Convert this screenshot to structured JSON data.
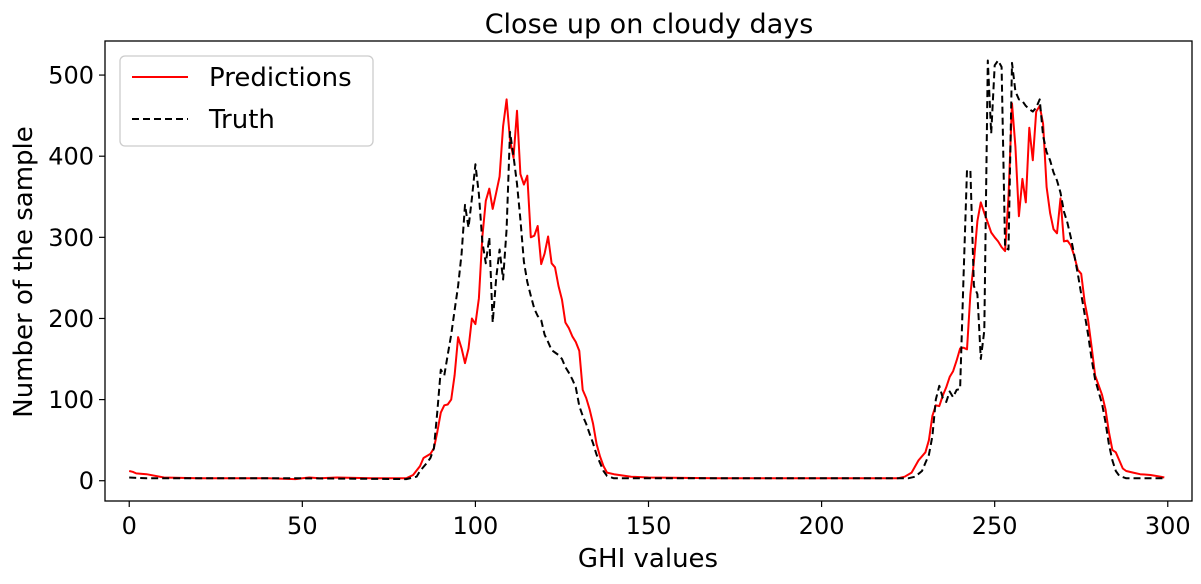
{
  "chart_data": {
    "type": "line",
    "title": "Close up on cloudy days",
    "xlabel": "GHI values",
    "ylabel": "Number of the sample",
    "xlim": [
      -7,
      307
    ],
    "ylim": [
      -25,
      542
    ],
    "xticks": [
      0,
      50,
      100,
      150,
      200,
      250,
      300
    ],
    "yticks": [
      0,
      100,
      200,
      300,
      400,
      500
    ],
    "grid": false,
    "legend_position": "top-left",
    "series": [
      {
        "name": "Predictions",
        "color": "#ff0000",
        "style": "solid",
        "points": [
          [
            0,
            12
          ],
          [
            1,
            11
          ],
          [
            2,
            9
          ],
          [
            5,
            8
          ],
          [
            10,
            4
          ],
          [
            20,
            3
          ],
          [
            40,
            3
          ],
          [
            48,
            2
          ],
          [
            50,
            3
          ],
          [
            52,
            4
          ],
          [
            55,
            3
          ],
          [
            60,
            4
          ],
          [
            70,
            3
          ],
          [
            80,
            3
          ],
          [
            82,
            7
          ],
          [
            84,
            18
          ],
          [
            85,
            28
          ],
          [
            87,
            33
          ],
          [
            88,
            40
          ],
          [
            89,
            60
          ],
          [
            90,
            84
          ],
          [
            91,
            93
          ],
          [
            92,
            94
          ],
          [
            93,
            100
          ],
          [
            94,
            130
          ],
          [
            95,
            177
          ],
          [
            96,
            163
          ],
          [
            97,
            145
          ],
          [
            98,
            163
          ],
          [
            99,
            200
          ],
          [
            100,
            193
          ],
          [
            101,
            225
          ],
          [
            102,
            300
          ],
          [
            103,
            345
          ],
          [
            104,
            360
          ],
          [
            105,
            335
          ],
          [
            106,
            355
          ],
          [
            107,
            375
          ],
          [
            108,
            437
          ],
          [
            109,
            470
          ],
          [
            110,
            420
          ],
          [
            111,
            398
          ],
          [
            112,
            456
          ],
          [
            113,
            378
          ],
          [
            114,
            365
          ],
          [
            115,
            376
          ],
          [
            116,
            300
          ],
          [
            117,
            302
          ],
          [
            118,
            314
          ],
          [
            119,
            267
          ],
          [
            120,
            280
          ],
          [
            121,
            301
          ],
          [
            122,
            268
          ],
          [
            123,
            263
          ],
          [
            124,
            240
          ],
          [
            125,
            223
          ],
          [
            126,
            195
          ],
          [
            127,
            188
          ],
          [
            128,
            178
          ],
          [
            129,
            171
          ],
          [
            130,
            160
          ],
          [
            131,
            112
          ],
          [
            132,
            102
          ],
          [
            133,
            88
          ],
          [
            134,
            70
          ],
          [
            135,
            45
          ],
          [
            136,
            30
          ],
          [
            137,
            18
          ],
          [
            138,
            10
          ],
          [
            140,
            8
          ],
          [
            145,
            5
          ],
          [
            150,
            4
          ],
          [
            170,
            3
          ],
          [
            200,
            3
          ],
          [
            222,
            3
          ],
          [
            224,
            5
          ],
          [
            226,
            10
          ],
          [
            228,
            25
          ],
          [
            230,
            35
          ],
          [
            231,
            50
          ],
          [
            232,
            80
          ],
          [
            233,
            93
          ],
          [
            234,
            92
          ],
          [
            235,
            105
          ],
          [
            236,
            115
          ],
          [
            237,
            128
          ],
          [
            238,
            135
          ],
          [
            239,
            148
          ],
          [
            240,
            163
          ],
          [
            241,
            164
          ],
          [
            242,
            162
          ],
          [
            243,
            230
          ],
          [
            244,
            270
          ],
          [
            245,
            320
          ],
          [
            246,
            343
          ],
          [
            247,
            330
          ],
          [
            248,
            318
          ],
          [
            249,
            306
          ],
          [
            250,
            300
          ],
          [
            251,
            295
          ],
          [
            252,
            288
          ],
          [
            253,
            283
          ],
          [
            254,
            350
          ],
          [
            255,
            465
          ],
          [
            256,
            412
          ],
          [
            257,
            326
          ],
          [
            258,
            372
          ],
          [
            259,
            343
          ],
          [
            260,
            435
          ],
          [
            261,
            395
          ],
          [
            262,
            455
          ],
          [
            263,
            462
          ],
          [
            264,
            440
          ],
          [
            265,
            362
          ],
          [
            266,
            330
          ],
          [
            267,
            310
          ],
          [
            268,
            305
          ],
          [
            269,
            348
          ],
          [
            270,
            295
          ],
          [
            271,
            296
          ],
          [
            272,
            290
          ],
          [
            273,
            277
          ],
          [
            274,
            260
          ],
          [
            275,
            255
          ],
          [
            276,
            220
          ],
          [
            277,
            198
          ],
          [
            278,
            165
          ],
          [
            279,
            130
          ],
          [
            280,
            118
          ],
          [
            281,
            106
          ],
          [
            282,
            88
          ],
          [
            283,
            60
          ],
          [
            284,
            38
          ],
          [
            285,
            35
          ],
          [
            286,
            25
          ],
          [
            287,
            15
          ],
          [
            288,
            12
          ],
          [
            290,
            10
          ],
          [
            292,
            8
          ],
          [
            295,
            7
          ],
          [
            298,
            5
          ],
          [
            299,
            4
          ]
        ]
      },
      {
        "name": "Truth",
        "color": "#000000",
        "style": "dashed",
        "points": [
          [
            0,
            4
          ],
          [
            5,
            3
          ],
          [
            20,
            3
          ],
          [
            50,
            3
          ],
          [
            80,
            2
          ],
          [
            83,
            5
          ],
          [
            84,
            12
          ],
          [
            86,
            22
          ],
          [
            87,
            28
          ],
          [
            88,
            40
          ],
          [
            89,
            85
          ],
          [
            90,
            137
          ],
          [
            91,
            130
          ],
          [
            92,
            155
          ],
          [
            93,
            180
          ],
          [
            94,
            210
          ],
          [
            95,
            240
          ],
          [
            96,
            280
          ],
          [
            97,
            340
          ],
          [
            98,
            312
          ],
          [
            99,
            348
          ],
          [
            100,
            390
          ],
          [
            101,
            353
          ],
          [
            102,
            295
          ],
          [
            103,
            268
          ],
          [
            104,
            300
          ],
          [
            105,
            195
          ],
          [
            106,
            250
          ],
          [
            107,
            285
          ],
          [
            108,
            248
          ],
          [
            109,
            310
          ],
          [
            110,
            430
          ],
          [
            111,
            400
          ],
          [
            112,
            366
          ],
          [
            113,
            322
          ],
          [
            114,
            270
          ],
          [
            115,
            245
          ],
          [
            116,
            228
          ],
          [
            117,
            212
          ],
          [
            118,
            203
          ],
          [
            119,
            198
          ],
          [
            120,
            180
          ],
          [
            121,
            171
          ],
          [
            122,
            161
          ],
          [
            123,
            158
          ],
          [
            124,
            155
          ],
          [
            125,
            150
          ],
          [
            126,
            140
          ],
          [
            127,
            133
          ],
          [
            128,
            125
          ],
          [
            129,
            115
          ],
          [
            130,
            92
          ],
          [
            131,
            80
          ],
          [
            132,
            70
          ],
          [
            133,
            58
          ],
          [
            134,
            46
          ],
          [
            135,
            32
          ],
          [
            136,
            22
          ],
          [
            137,
            12
          ],
          [
            138,
            6
          ],
          [
            140,
            3
          ],
          [
            150,
            3
          ],
          [
            200,
            3
          ],
          [
            225,
            3
          ],
          [
            227,
            5
          ],
          [
            229,
            12
          ],
          [
            230,
            22
          ],
          [
            231,
            32
          ],
          [
            232,
            55
          ],
          [
            233,
            100
          ],
          [
            234,
            117
          ],
          [
            235,
            102
          ],
          [
            236,
            97
          ],
          [
            237,
            110
          ],
          [
            238,
            103
          ],
          [
            239,
            112
          ],
          [
            240,
            113
          ],
          [
            241,
            250
          ],
          [
            242,
            383
          ],
          [
            243,
            382
          ],
          [
            244,
            240
          ],
          [
            245,
            230
          ],
          [
            246,
            150
          ],
          [
            247,
            185
          ],
          [
            248,
            518
          ],
          [
            249,
            428
          ],
          [
            250,
            512
          ],
          [
            251,
            518
          ],
          [
            252,
            510
          ],
          [
            253,
            287
          ],
          [
            254,
            285
          ],
          [
            255,
            515
          ],
          [
            256,
            480
          ],
          [
            257,
            470
          ],
          [
            258,
            468
          ],
          [
            259,
            462
          ],
          [
            260,
            458
          ],
          [
            261,
            455
          ],
          [
            262,
            460
          ],
          [
            263,
            470
          ],
          [
            264,
            425
          ],
          [
            265,
            405
          ],
          [
            266,
            395
          ],
          [
            267,
            380
          ],
          [
            268,
            370
          ],
          [
            269,
            355
          ],
          [
            270,
            332
          ],
          [
            271,
            318
          ],
          [
            272,
            300
          ],
          [
            273,
            278
          ],
          [
            274,
            255
          ],
          [
            275,
            230
          ],
          [
            276,
            205
          ],
          [
            277,
            180
          ],
          [
            278,
            150
          ],
          [
            279,
            125
          ],
          [
            280,
            110
          ],
          [
            281,
            95
          ],
          [
            282,
            72
          ],
          [
            283,
            45
          ],
          [
            284,
            25
          ],
          [
            285,
            12
          ],
          [
            286,
            6
          ],
          [
            288,
            3
          ],
          [
            299,
            3
          ]
        ]
      }
    ]
  }
}
